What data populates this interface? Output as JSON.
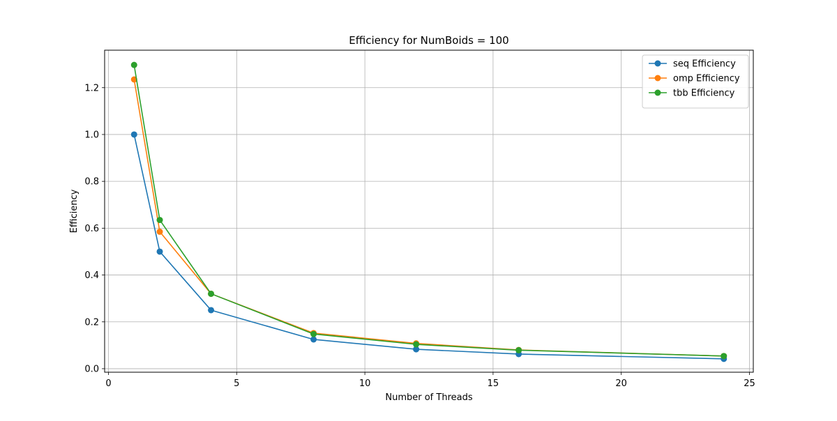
{
  "chart_data": {
    "type": "line",
    "title": "Efficiency for NumBoids = 100",
    "xlabel": "Number of Threads",
    "ylabel": "Efficiency",
    "xlim": [
      -0.15,
      25.15
    ],
    "ylim": [
      -0.015,
      1.36
    ],
    "xticks": [
      0,
      5,
      10,
      15,
      20,
      25
    ],
    "xtick_labels": [
      "0",
      "5",
      "10",
      "15",
      "20",
      "25"
    ],
    "yticks": [
      0.0,
      0.2,
      0.4,
      0.6,
      0.8,
      1.0,
      1.2
    ],
    "ytick_labels": [
      "0.0",
      "0.2",
      "0.4",
      "0.6",
      "0.8",
      "1.0",
      "1.2"
    ],
    "grid": true,
    "legend_position": "top-right",
    "x": [
      1,
      2,
      4,
      8,
      12,
      16,
      24
    ],
    "series": [
      {
        "name": "seq Efficiency",
        "color": "#1f77b4",
        "values": [
          1.0,
          0.5,
          0.25,
          0.125,
          0.083,
          0.0625,
          0.042
        ]
      },
      {
        "name": "omp Efficiency",
        "color": "#ff7f0e",
        "values": [
          1.235,
          0.585,
          0.32,
          0.152,
          0.108,
          0.08,
          0.054
        ]
      },
      {
        "name": "tbb Efficiency",
        "color": "#2ca02c",
        "values": [
          1.297,
          0.635,
          0.32,
          0.148,
          0.104,
          0.079,
          0.054
        ]
      }
    ]
  }
}
